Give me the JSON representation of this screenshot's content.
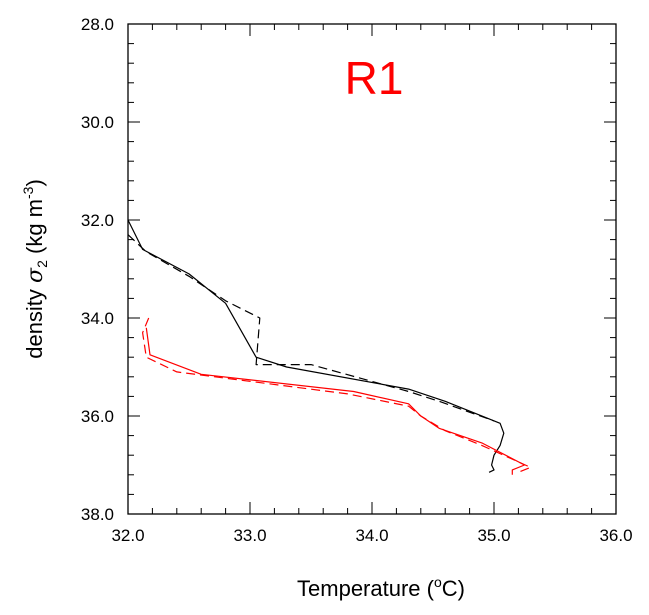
{
  "chart_data": {
    "type": "line",
    "title": "R1",
    "title_color": "#ff0000",
    "xlabel": {
      "main": "Temperature (",
      "sup": "o",
      "unit": "C)"
    },
    "ylabel": {
      "main": "density ",
      "symbol": "σ",
      "sub": "2",
      "unit": " (kg m",
      "sup": "-3",
      "close": ")"
    },
    "xlim": [
      32.0,
      36.0
    ],
    "ylim": [
      28.0,
      38.0
    ],
    "y_inverted": true,
    "grid": false,
    "x_major_ticks": [
      32.0,
      33.0,
      34.0,
      35.0,
      36.0
    ],
    "x_tick_labels": [
      "32.0",
      "33.0",
      "34.0",
      "35.0",
      "36.0"
    ],
    "y_major_ticks": [
      28.0,
      30.0,
      32.0,
      34.0,
      36.0,
      38.0
    ],
    "y_tick_labels": [
      "28.0",
      "30.0",
      "32.0",
      "34.0",
      "36.0",
      "38.0"
    ],
    "series": [
      {
        "color": "#000000",
        "dash": "solid",
        "points": [
          [
            32.0,
            32.0
          ],
          [
            32.12,
            32.6
          ],
          [
            32.5,
            33.1
          ],
          [
            32.8,
            33.7
          ],
          [
            33.05,
            34.8
          ],
          [
            33.3,
            35.0
          ],
          [
            34.3,
            35.45
          ],
          [
            34.6,
            35.7
          ],
          [
            35.05,
            36.15
          ],
          [
            35.08,
            36.35
          ],
          [
            35.05,
            36.6
          ],
          [
            35.0,
            36.8
          ],
          [
            34.98,
            37.0
          ],
          [
            35.0,
            37.1
          ],
          [
            34.96,
            37.15
          ]
        ]
      },
      {
        "color": "#000000",
        "dash": "dashed",
        "points": [
          [
            32.0,
            32.3
          ],
          [
            32.15,
            32.65
          ],
          [
            32.5,
            33.15
          ],
          [
            32.8,
            33.65
          ],
          [
            33.08,
            34.0
          ],
          [
            33.05,
            34.95
          ],
          [
            33.5,
            34.95
          ],
          [
            34.3,
            35.5
          ],
          [
            34.55,
            35.7
          ],
          [
            35.0,
            36.1
          ]
        ]
      },
      {
        "color": "#ff0000",
        "dash": "solid",
        "points": [
          [
            32.15,
            34.2
          ],
          [
            32.18,
            34.75
          ],
          [
            32.6,
            35.15
          ],
          [
            33.85,
            35.5
          ],
          [
            34.3,
            35.75
          ],
          [
            34.4,
            36.0
          ],
          [
            34.55,
            36.25
          ],
          [
            34.9,
            36.55
          ],
          [
            35.25,
            37.0
          ],
          [
            35.15,
            37.1
          ],
          [
            35.15,
            37.2
          ]
        ]
      },
      {
        "color": "#ff0000",
        "dash": "dashed",
        "points": [
          [
            32.17,
            34.0
          ],
          [
            32.12,
            34.3
          ],
          [
            32.15,
            34.8
          ],
          [
            32.4,
            35.1
          ],
          [
            33.8,
            35.55
          ],
          [
            34.3,
            35.8
          ],
          [
            34.4,
            36.0
          ],
          [
            34.6,
            36.3
          ],
          [
            34.9,
            36.6
          ],
          [
            35.3,
            37.05
          ],
          [
            35.2,
            37.15
          ]
        ]
      }
    ]
  }
}
